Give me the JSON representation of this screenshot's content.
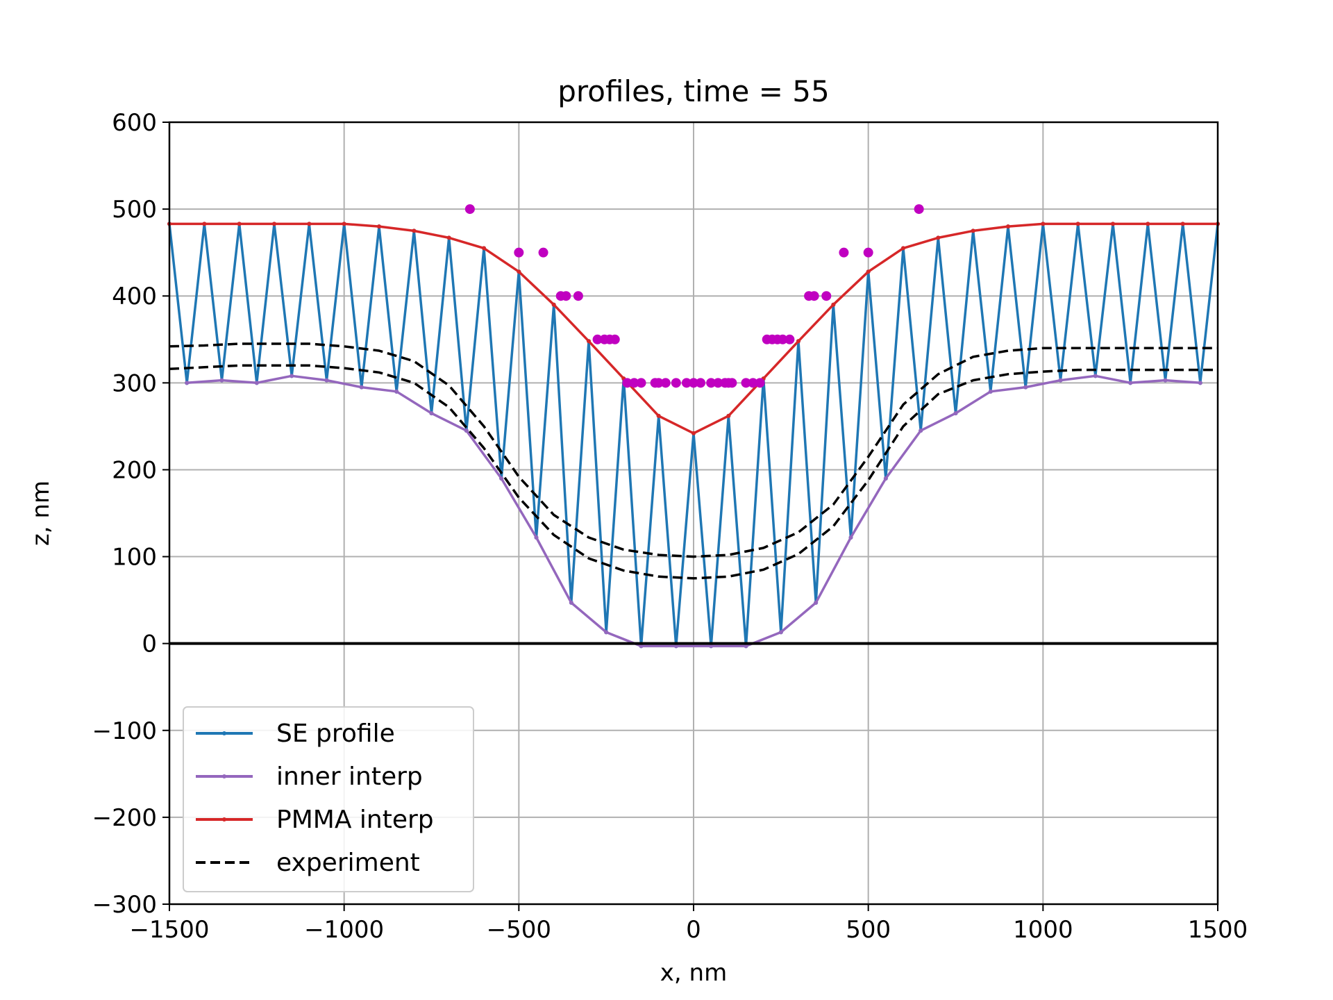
{
  "chart_data": {
    "type": "line",
    "title": "profiles, time = 55",
    "xlabel": "x, nm",
    "ylabel": "z, nm",
    "xlim": [
      -1500,
      1500
    ],
    "ylim": [
      -300,
      600
    ],
    "xticks": [
      -1500,
      -1000,
      -500,
      0,
      500,
      1000,
      1500
    ],
    "xtick_labels": [
      "−1500",
      "−1000",
      "−500",
      "0",
      "500",
      "1000",
      "1500"
    ],
    "yticks": [
      -300,
      -200,
      -100,
      0,
      100,
      200,
      300,
      400,
      500,
      600
    ],
    "ytick_labels": [
      "−300",
      "−200",
      "−100",
      "0",
      "100",
      "200",
      "300",
      "400",
      "500",
      "600"
    ],
    "grid": true,
    "legend_position": "lower-left",
    "zero_line": true,
    "series": [
      {
        "name": "SE profile",
        "color": "#1f77b4",
        "style": "solid",
        "x": [
          -1500,
          -1450,
          -1400,
          -1350,
          -1300,
          -1250,
          -1200,
          -1150,
          -1100,
          -1050,
          -1000,
          -950,
          -900,
          -850,
          -800,
          -750,
          -700,
          -650,
          -600,
          -550,
          -500,
          -450,
          -400,
          -350,
          -300,
          -250,
          -200,
          -150,
          -100,
          -50,
          0,
          50,
          100,
          150,
          200,
          250,
          300,
          350,
          400,
          450,
          500,
          550,
          600,
          650,
          700,
          750,
          800,
          850,
          900,
          950,
          1000,
          1050,
          1100,
          1150,
          1200,
          1250,
          1300,
          1350,
          1400,
          1450,
          1500
        ],
        "y": [
          483,
          300,
          483,
          303,
          483,
          300,
          483,
          308,
          483,
          303,
          483,
          295,
          480,
          290,
          475,
          265,
          467,
          245,
          455,
          190,
          428,
          122,
          390,
          47,
          348,
          13,
          305,
          -3,
          262,
          -3,
          242,
          -3,
          262,
          -3,
          305,
          13,
          348,
          47,
          390,
          122,
          428,
          190,
          455,
          245,
          467,
          265,
          475,
          290,
          480,
          295,
          483,
          303,
          483,
          308,
          483,
          300,
          483,
          303,
          483,
          300,
          483
        ]
      },
      {
        "name": "inner interp",
        "color": "#9467bd",
        "style": "solid",
        "x": [
          -1450,
          -1350,
          -1250,
          -1150,
          -1050,
          -950,
          -850,
          -750,
          -650,
          -550,
          -450,
          -350,
          -250,
          -150,
          -50,
          50,
          150,
          250,
          350,
          450,
          550,
          650,
          750,
          850,
          950,
          1050,
          1150,
          1250,
          1350,
          1450
        ],
        "y": [
          300,
          303,
          300,
          308,
          303,
          295,
          290,
          265,
          245,
          190,
          122,
          47,
          13,
          -3,
          -3,
          -3,
          -3,
          13,
          47,
          122,
          190,
          245,
          265,
          290,
          295,
          303,
          308,
          300,
          303,
          300
        ]
      },
      {
        "name": "PMMA interp",
        "color": "#d62728",
        "style": "solid",
        "x": [
          -1500,
          -1400,
          -1300,
          -1200,
          -1100,
          -1000,
          -900,
          -800,
          -700,
          -600,
          -500,
          -400,
          -300,
          -200,
          -100,
          0,
          100,
          200,
          300,
          400,
          500,
          600,
          700,
          800,
          900,
          1000,
          1100,
          1200,
          1300,
          1400,
          1500
        ],
        "y": [
          483,
          483,
          483,
          483,
          483,
          483,
          480,
          475,
          467,
          455,
          428,
          390,
          348,
          305,
          262,
          242,
          262,
          305,
          348,
          390,
          428,
          455,
          467,
          475,
          480,
          483,
          483,
          483,
          483,
          483,
          483
        ]
      },
      {
        "name": "experiment",
        "color": "#000000",
        "style": "dashed",
        "x": [
          -1500,
          -1400,
          -1300,
          -1200,
          -1100,
          -1000,
          -900,
          -800,
          -700,
          -600,
          -500,
          -400,
          -300,
          -200,
          -100,
          0,
          100,
          200,
          300,
          400,
          500,
          600,
          700,
          800,
          900,
          1000,
          1100,
          1200,
          1300,
          1400,
          1500
        ],
        "y": [
          342,
          343,
          345,
          345,
          345,
          342,
          337,
          325,
          297,
          250,
          192,
          148,
          122,
          108,
          102,
          100,
          102,
          110,
          128,
          160,
          215,
          275,
          310,
          330,
          337,
          340,
          340,
          340,
          340,
          340,
          340
        ]
      },
      {
        "name": "",
        "color": "#000000",
        "style": "dashed",
        "x": [
          -1500,
          -1400,
          -1300,
          -1200,
          -1100,
          -1000,
          -900,
          -800,
          -700,
          -600,
          -500,
          -400,
          -300,
          -200,
          -100,
          0,
          100,
          200,
          300,
          400,
          500,
          600,
          700,
          800,
          900,
          1000,
          1100,
          1200,
          1300,
          1400,
          1500
        ],
        "y": [
          316,
          318,
          320,
          320,
          320,
          317,
          312,
          300,
          272,
          225,
          168,
          125,
          98,
          84,
          77,
          75,
          77,
          85,
          103,
          135,
          188,
          250,
          287,
          303,
          310,
          313,
          315,
          315,
          315,
          315,
          315
        ]
      }
    ],
    "scatter": {
      "color": "#c000c0",
      "x": [
        -640,
        -500,
        -430,
        -380,
        -365,
        -330,
        -275,
        -255,
        -240,
        -225,
        -190,
        -170,
        -150,
        -110,
        -100,
        -80,
        -50,
        -20,
        0,
        20,
        50,
        70,
        90,
        100,
        110,
        150,
        170,
        190,
        210,
        225,
        240,
        255,
        275,
        330,
        345,
        380,
        430,
        500,
        645
      ],
      "y": [
        500,
        450,
        450,
        400,
        400,
        400,
        350,
        350,
        350,
        350,
        300,
        300,
        300,
        300,
        300,
        300,
        300,
        300,
        300,
        300,
        300,
        300,
        300,
        300,
        300,
        300,
        300,
        300,
        350,
        350,
        350,
        350,
        350,
        400,
        400,
        400,
        450,
        450,
        500
      ]
    }
  }
}
